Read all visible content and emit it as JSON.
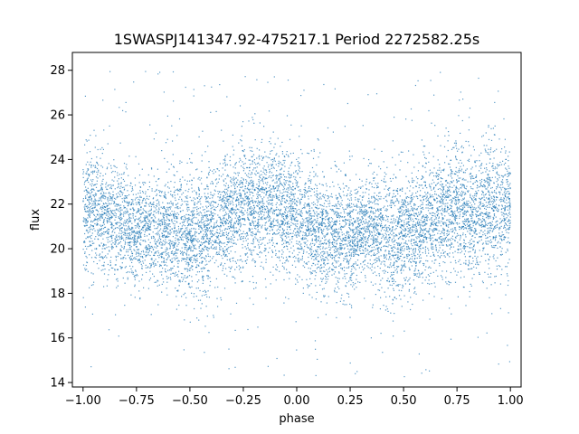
{
  "chart_data": {
    "type": "scatter",
    "title": "1SWASPJ141347.92-475217.1 Period 2272582.25s",
    "xlabel": "phase",
    "ylabel": "flux",
    "xlim": [
      -1.05,
      1.05
    ],
    "ylim": [
      13.8,
      28.8
    ],
    "xticks": [
      -1.0,
      -0.75,
      -0.5,
      -0.25,
      0.0,
      0.25,
      0.5,
      0.75,
      1.0
    ],
    "xtick_labels": [
      "−1.00",
      "−0.75",
      "−0.50",
      "−0.25",
      "0.00",
      "0.25",
      "0.50",
      "0.75",
      "1.00"
    ],
    "yticks": [
      14,
      16,
      18,
      20,
      22,
      24,
      26,
      28
    ],
    "ytick_labels": [
      "14",
      "16",
      "18",
      "20",
      "22",
      "24",
      "26",
      "28"
    ],
    "grid": false,
    "marker_color": "#1f77b4",
    "series": [
      {
        "x": [
          -1.0,
          -0.98,
          -0.95,
          -0.92,
          -0.9,
          -0.88,
          -0.85,
          -0.82,
          -0.8,
          -0.78,
          -0.75,
          -0.72,
          -0.7,
          -0.68,
          -0.65,
          -0.62,
          -0.6,
          -0.58,
          -0.55,
          -0.52,
          -0.5,
          -0.48,
          -0.45,
          -0.42,
          -0.4,
          -0.38,
          -0.35,
          -0.32,
          -0.3,
          -0.28,
          -0.25,
          -0.22,
          -0.2,
          -0.18,
          -0.15,
          -0.12,
          -0.1,
          -0.08,
          -0.05,
          -0.02,
          0.0,
          0.02,
          0.05,
          0.08,
          0.1,
          0.12,
          0.15,
          0.18,
          0.2,
          0.22,
          0.25,
          0.28,
          0.3,
          0.32,
          0.35,
          0.38,
          0.4,
          0.42,
          0.45,
          0.48,
          0.5,
          0.52,
          0.55,
          0.58,
          0.6,
          0.62,
          0.65,
          0.68,
          0.7,
          0.72,
          0.75,
          0.78,
          0.8,
          0.82,
          0.85,
          0.88,
          0.9,
          0.92,
          0.95,
          0.98,
          1.0
        ],
        "y_center": [
          21.5,
          21.6,
          21.8,
          21.7,
          21.6,
          21.5,
          21.3,
          21.1,
          21.0,
          20.9,
          20.8,
          20.9,
          20.7,
          21.0,
          20.8,
          20.9,
          21.0,
          20.9,
          20.8,
          20.6,
          20.7,
          20.6,
          20.5,
          20.9,
          21.0,
          21.2,
          21.3,
          21.5,
          21.6,
          21.8,
          21.9,
          22.0,
          22.0,
          22.1,
          22.0,
          22.0,
          21.8,
          21.9,
          21.7,
          21.5,
          21.4,
          21.2,
          21.0,
          20.8,
          20.7,
          20.6,
          20.5,
          20.5,
          20.6,
          20.8,
          20.7,
          20.6,
          21.0,
          21.1,
          21.0,
          20.8,
          20.7,
          20.6,
          20.5,
          20.6,
          20.7,
          20.8,
          20.8,
          21.0,
          21.2,
          21.3,
          21.4,
          21.5,
          21.6,
          21.8,
          21.9,
          21.8,
          21.8,
          21.7,
          21.8,
          21.9,
          22.0,
          21.9,
          21.8,
          21.9,
          22.0
        ],
        "y_spread": [
          2.4,
          2.5,
          2.5,
          2.4,
          2.4,
          2.3,
          2.3,
          2.2,
          2.2,
          2.1,
          2.1,
          2.0,
          1.8,
          2.0,
          2.1,
          2.2,
          2.3,
          2.3,
          2.4,
          2.5,
          2.5,
          2.5,
          2.5,
          2.4,
          2.3,
          2.3,
          2.4,
          2.4,
          2.5,
          2.5,
          2.6,
          2.6,
          2.6,
          2.6,
          2.5,
          2.6,
          2.5,
          2.5,
          2.5,
          2.4,
          2.4,
          2.3,
          2.3,
          2.3,
          2.2,
          2.2,
          2.2,
          2.2,
          2.3,
          2.3,
          2.2,
          2.1,
          1.9,
          2.0,
          2.2,
          2.3,
          2.3,
          2.4,
          2.5,
          2.5,
          2.5,
          2.5,
          2.5,
          2.4,
          2.4,
          2.4,
          2.4,
          2.5,
          2.5,
          2.5,
          2.6,
          2.6,
          2.5,
          2.5,
          2.6,
          2.6,
          2.6,
          2.6,
          2.5,
          2.5,
          2.5
        ],
        "outlier_range": [
          14.2,
          28.2
        ]
      }
    ]
  }
}
